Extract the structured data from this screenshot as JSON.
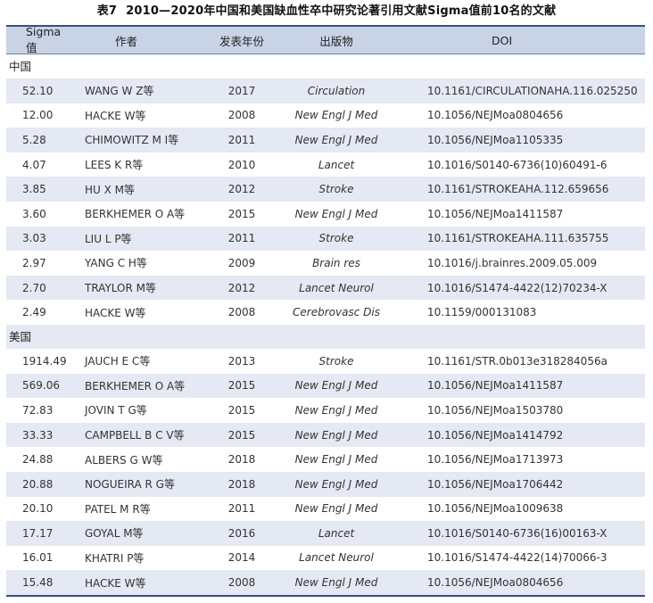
{
  "caption": {
    "number": "表7",
    "title": "2010—2020年中国和美国缺血性卒中研究论著引用文献Sigma值前10名的文献"
  },
  "header": {
    "sigma": "Sigma值",
    "author": "作者",
    "year": "发表年份",
    "journal": "出版物",
    "doi": "DOI"
  },
  "china": {
    "label": "中国",
    "rows": [
      {
        "sigma": "52.10",
        "author": "WANG W Z等",
        "year": "2017",
        "journal": "Circulation",
        "doi": "10.1161/CIRCULATIONAHA.116.025250"
      },
      {
        "sigma": "12.00",
        "author": "HACKE W等",
        "year": "2008",
        "journal": "New Engl J Med",
        "doi": "10.1056/NEJMoa0804656"
      },
      {
        "sigma": "5.28",
        "author": "CHIMOWITZ M I等",
        "year": "2011",
        "journal": "New Engl J Med",
        "doi": "10.1056/NEJMoa1105335"
      },
      {
        "sigma": "4.07",
        "author": "LEES K R等",
        "year": "2010",
        "journal": "Lancet",
        "doi": "10.1016/S0140-6736(10)60491-6"
      },
      {
        "sigma": "3.85",
        "author": "HU X M等",
        "year": "2012",
        "journal": "Stroke",
        "doi": "10.1161/STROKEAHA.112.659656"
      },
      {
        "sigma": "3.60",
        "author": "BERKHEMER O A等",
        "year": "2015",
        "journal": "New Engl J Med",
        "doi": "10.1056/NEJMoa1411587"
      },
      {
        "sigma": "3.03",
        "author": "LIU L P等",
        "year": "2011",
        "journal": "Stroke",
        "doi": "10.1161/STROKEAHA.111.635755"
      },
      {
        "sigma": "2.97",
        "author": "YANG C H等",
        "year": "2009",
        "journal": "Brain res",
        "doi": "10.1016/j.brainres.2009.05.009"
      },
      {
        "sigma": "2.70",
        "author": "TRAYLOR M等",
        "year": "2012",
        "journal": "Lancet Neurol",
        "doi": "10.1016/S1474-4422(12)70234-X"
      },
      {
        "sigma": "2.49",
        "author": "HACKE W等",
        "year": "2008",
        "journal": "Cerebrovasc Dis",
        "doi": "10.1159/000131083"
      }
    ]
  },
  "usa": {
    "label": "美国",
    "rows": [
      {
        "sigma": "1914.49",
        "author": "JAUCH E C等",
        "year": "2013",
        "journal": "Stroke",
        "doi": "10.1161/STR.0b013e318284056a"
      },
      {
        "sigma": "569.06",
        "author": "BERKHEMER O A等",
        "year": "2015",
        "journal": "New Engl J Med",
        "doi": "10.1056/NEJMoa1411587"
      },
      {
        "sigma": "72.83",
        "author": "JOVIN T G等",
        "year": "2015",
        "journal": "New Engl J Med",
        "doi": "10.1056/NEJMoa1503780"
      },
      {
        "sigma": "33.33",
        "author": "CAMPBELL B C V等",
        "year": "2015",
        "journal": "New Engl J Med",
        "doi": "10.1056/NEJMoa1414792"
      },
      {
        "sigma": "24.88",
        "author": "ALBERS G W等",
        "year": "2018",
        "journal": "New Engl J Med",
        "doi": "10.1056/NEJMoa1713973"
      },
      {
        "sigma": "20.88",
        "author": "NOGUEIRA R G等",
        "year": "2018",
        "journal": "New Engl J Med",
        "doi": "10.1056/NEJMoa1706442"
      },
      {
        "sigma": "20.10",
        "author": "PATEL M R等",
        "year": "2011",
        "journal": "New Engl J Med",
        "doi": "10.1056/NEJMoa1009638"
      },
      {
        "sigma": "17.17",
        "author": "GOYAL M等",
        "year": "2016",
        "journal": "Lancet",
        "doi": "10.1016/S0140-6736(16)00163-X"
      },
      {
        "sigma": "16.01",
        "author": "KHATRI P等",
        "year": "2014",
        "journal": "Lancet Neurol",
        "doi": "10.1016/S1474-4422(14)70066-3"
      },
      {
        "sigma": "15.48",
        "author": "HACKE W等",
        "year": "2008",
        "journal": "New Engl J Med",
        "doi": "10.1056/NEJMoa0804656"
      }
    ]
  },
  "colors": {
    "header_bg": "#c9d3e6",
    "stripe": "#e4e9f3",
    "rule": "#3a4f7a"
  }
}
